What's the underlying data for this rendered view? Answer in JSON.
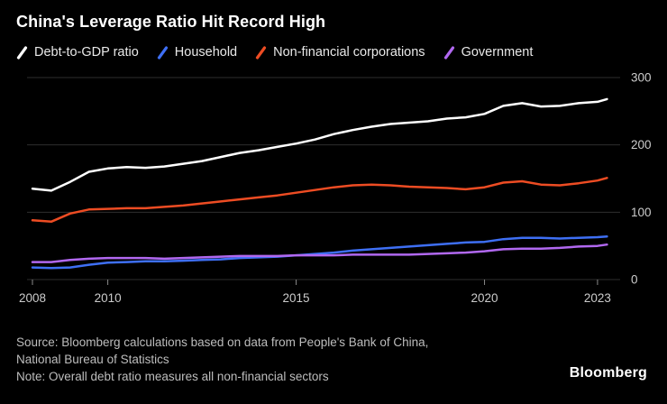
{
  "title": "China's Leverage Ratio Hit Record High",
  "legend": [
    {
      "label": "Debt-to-GDP ratio",
      "color": "#ffffff"
    },
    {
      "label": "Household",
      "color": "#3e6ff4"
    },
    {
      "label": "Non-financial corporations",
      "color": "#ed4c23"
    },
    {
      "label": "Government",
      "color": "#b168f0"
    }
  ],
  "chart_data": {
    "type": "line",
    "title": "China's Leverage Ratio Hit Record High",
    "xlabel": "",
    "ylabel": "",
    "ylim": [
      0,
      300
    ],
    "yticks": [
      0,
      100,
      200,
      300
    ],
    "xticks": [
      2008,
      2010,
      2015,
      2020,
      2023
    ],
    "grid": "horizontal",
    "legend_position": "top",
    "x": [
      2008,
      2008.5,
      2009,
      2009.5,
      2010,
      2010.5,
      2011,
      2011.5,
      2012,
      2012.5,
      2013,
      2013.5,
      2014,
      2014.5,
      2015,
      2015.5,
      2016,
      2016.5,
      2017,
      2017.5,
      2018,
      2018.5,
      2019,
      2019.5,
      2020,
      2020.5,
      2021,
      2021.5,
      2022,
      2022.5,
      2023,
      2023.25
    ],
    "series": [
      {
        "name": "Debt-to-GDP ratio",
        "color": "#ffffff",
        "values": [
          135,
          132,
          145,
          160,
          165,
          167,
          166,
          168,
          172,
          176,
          182,
          188,
          192,
          197,
          202,
          208,
          216,
          222,
          227,
          231,
          233,
          235,
          239,
          241,
          246,
          258,
          262,
          257,
          258,
          262,
          264,
          268
        ]
      },
      {
        "name": "Non-financial corporations",
        "color": "#ed4c23",
        "values": [
          88,
          86,
          98,
          104,
          105,
          106,
          106,
          108,
          110,
          113,
          116,
          119,
          122,
          125,
          129,
          133,
          137,
          140,
          141,
          140,
          138,
          137,
          136,
          134,
          137,
          144,
          146,
          141,
          140,
          143,
          147,
          151
        ]
      },
      {
        "name": "Household",
        "color": "#3e6ff4",
        "values": [
          18,
          17,
          18,
          22,
          25,
          26,
          27,
          27,
          28,
          29,
          30,
          32,
          33,
          34,
          36,
          38,
          40,
          43,
          45,
          47,
          49,
          51,
          53,
          55,
          56,
          60,
          62,
          62,
          61,
          62,
          63,
          64
        ]
      },
      {
        "name": "Government",
        "color": "#b168f0",
        "values": [
          26,
          26,
          29,
          31,
          32,
          32,
          32,
          31,
          32,
          33,
          34,
          35,
          35,
          35,
          36,
          36,
          36,
          37,
          37,
          37,
          37,
          38,
          39,
          40,
          42,
          45,
          46,
          46,
          47,
          49,
          50,
          52
        ]
      }
    ],
    "colors": {
      "background": "#000000",
      "gridline": "#2e2e2e",
      "tick_label": "#cbcbcb",
      "axis_tick": "#8a8a8a"
    }
  },
  "footer": {
    "source_line1": "Source: Bloomberg calculations based on data from People's Bank of China,",
    "source_line2": "National Bureau of Statistics",
    "note": "Note: Overall debt ratio measures all non-financial sectors",
    "brand": "Bloomberg"
  }
}
